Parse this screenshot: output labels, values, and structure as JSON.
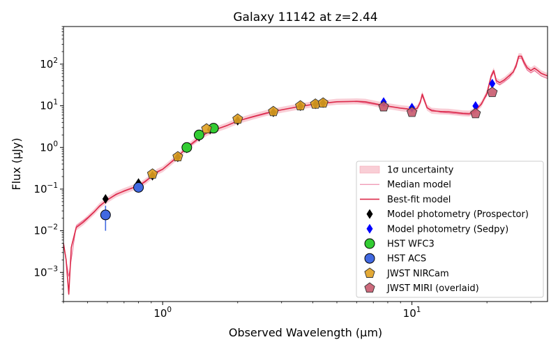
{
  "chart_data": {
    "type": "scatter",
    "title": "Galaxy 11142 at z=2.44",
    "xlabel": "Observed Wavelength (μm)",
    "ylabel": "Flux (μJy)",
    "xscale": "log",
    "yscale": "log",
    "xlim": [
      0.4,
      35
    ],
    "ylim": [
      0.0002,
      800
    ],
    "x_ticks": [
      {
        "value": 1,
        "base": "10",
        "exp": "0"
      },
      {
        "value": 10,
        "base": "10",
        "exp": "1"
      }
    ],
    "y_ticks": [
      {
        "value": 0.001,
        "base": "10",
        "exp": "−3"
      },
      {
        "value": 0.01,
        "base": "10",
        "exp": "−2"
      },
      {
        "value": 0.1,
        "base": "10",
        "exp": "−1"
      },
      {
        "value": 1,
        "base": "10",
        "exp": "0"
      },
      {
        "value": 10,
        "base": "10",
        "exp": "1"
      },
      {
        "value": 100,
        "base": "10",
        "exp": "2"
      }
    ],
    "legend_position": "bottom-right",
    "colors": {
      "uncertainty": "#f4a6b5",
      "median": "#e8608a",
      "bestfit": "#dc2a4a",
      "prospector": "#000000",
      "sedpy": "#0000ff",
      "wfc3": "#33cc33",
      "acs": "#4169e1",
      "nircam": "#e0a020",
      "miri": "#c85a6e"
    },
    "model_curve": [
      [
        0.4,
        0.005
      ],
      [
        0.41,
        0.002
      ],
      [
        0.42,
        0.0003
      ],
      [
        0.43,
        0.004
      ],
      [
        0.45,
        0.012
      ],
      [
        0.48,
        0.016
      ],
      [
        0.5,
        0.02
      ],
      [
        0.53,
        0.028
      ],
      [
        0.56,
        0.04
      ],
      [
        0.6,
        0.055
      ],
      [
        0.65,
        0.075
      ],
      [
        0.7,
        0.09
      ],
      [
        0.75,
        0.105
      ],
      [
        0.8,
        0.12
      ],
      [
        0.85,
        0.15
      ],
      [
        0.9,
        0.2
      ],
      [
        0.95,
        0.26
      ],
      [
        1.0,
        0.3
      ],
      [
        1.05,
        0.38
      ],
      [
        1.1,
        0.48
      ],
      [
        1.15,
        0.6
      ],
      [
        1.2,
        0.78
      ],
      [
        1.3,
        1.2
      ],
      [
        1.4,
        1.7
      ],
      [
        1.5,
        2.2
      ],
      [
        1.6,
        2.6
      ],
      [
        1.8,
        3.3
      ],
      [
        2.0,
        4.3
      ],
      [
        2.3,
        5.5
      ],
      [
        2.6,
        6.7
      ],
      [
        3.0,
        8.0
      ],
      [
        3.5,
        9.5
      ],
      [
        4.0,
        10.8
      ],
      [
        5.0,
        12.5
      ],
      [
        6.0,
        12.8
      ],
      [
        6.5,
        12.5
      ],
      [
        7.0,
        11.5
      ],
      [
        7.5,
        10.5
      ],
      [
        8.0,
        9.8
      ],
      [
        8.5,
        9.3
      ],
      [
        9.0,
        8.8
      ],
      [
        9.5,
        8.5
      ],
      [
        10.0,
        8.2
      ],
      [
        10.5,
        8.7
      ],
      [
        10.8,
        12.0
      ],
      [
        11.0,
        19.0
      ],
      [
        11.2,
        14.0
      ],
      [
        11.5,
        9.0
      ],
      [
        12.0,
        7.6
      ],
      [
        13.0,
        7.3
      ],
      [
        14.0,
        7.2
      ],
      [
        15.0,
        6.9
      ],
      [
        16.0,
        6.6
      ],
      [
        17.0,
        6.5
      ],
      [
        18.0,
        7.8
      ],
      [
        19.0,
        11.0
      ],
      [
        20.0,
        20.0
      ],
      [
        20.8,
        52.0
      ],
      [
        21.3,
        70.0
      ],
      [
        21.8,
        40.0
      ],
      [
        22.5,
        36.0
      ],
      [
        23.5,
        42.0
      ],
      [
        24.5,
        52.0
      ],
      [
        25.5,
        65.0
      ],
      [
        26.2,
        95.0
      ],
      [
        26.8,
        155.0
      ],
      [
        27.5,
        155.0
      ],
      [
        28.2,
        110.0
      ],
      [
        29.0,
        82.0
      ],
      [
        30.0,
        70.0
      ],
      [
        31.0,
        80.0
      ],
      [
        32.0,
        70.0
      ],
      [
        33.0,
        60.0
      ],
      [
        35.0,
        52.0
      ]
    ],
    "median_curve": [
      [
        0.4,
        0.005
      ],
      [
        0.42,
        0.0008
      ],
      [
        0.45,
        0.013
      ],
      [
        0.5,
        0.021
      ],
      [
        0.6,
        0.056
      ],
      [
        0.7,
        0.092
      ],
      [
        0.8,
        0.122
      ],
      [
        0.9,
        0.2
      ],
      [
        1.0,
        0.3
      ],
      [
        1.2,
        0.78
      ],
      [
        1.5,
        2.2
      ],
      [
        2.0,
        4.3
      ],
      [
        3.0,
        8.0
      ],
      [
        4.0,
        10.8
      ],
      [
        5.0,
        12.5
      ],
      [
        6.0,
        12.6
      ],
      [
        8.0,
        9.6
      ],
      [
        10.0,
        8.0
      ],
      [
        10.5,
        8.5
      ],
      [
        11.0,
        17.0
      ],
      [
        11.5,
        8.8
      ],
      [
        13.0,
        7.0
      ],
      [
        15.0,
        6.5
      ],
      [
        17.0,
        6.1
      ],
      [
        18.0,
        7.2
      ],
      [
        20.0,
        18.0
      ],
      [
        20.8,
        48.0
      ],
      [
        21.3,
        64.0
      ],
      [
        21.8,
        36.0
      ],
      [
        22.5,
        32.0
      ],
      [
        24.5,
        46.0
      ],
      [
        26.2,
        85.0
      ],
      [
        26.8,
        140.0
      ],
      [
        27.5,
        140.0
      ],
      [
        28.2,
        98.0
      ],
      [
        29.0,
        72.0
      ],
      [
        30.0,
        62.0
      ],
      [
        31.0,
        70.0
      ],
      [
        33.0,
        52.0
      ],
      [
        35.0,
        45.0
      ]
    ],
    "prospector_points": [
      [
        0.59,
        0.058
      ],
      [
        0.8,
        0.14
      ],
      [
        0.91,
        0.21
      ],
      [
        1.15,
        0.58
      ],
      [
        1.25,
        0.95
      ],
      [
        1.4,
        1.8
      ],
      [
        1.55,
        2.7
      ],
      [
        2.0,
        4.4
      ],
      [
        2.78,
        7.0
      ],
      [
        3.57,
        9.8
      ],
      [
        4.1,
        10.9
      ],
      [
        4.4,
        11.6
      ]
    ],
    "sedpy_points": [
      [
        7.7,
        12.3
      ],
      [
        10.0,
        9.0
      ],
      [
        18.0,
        9.9
      ],
      [
        21.0,
        34.0
      ]
    ],
    "wfc3_points": [
      [
        1.25,
        1.0
      ],
      [
        1.4,
        2.0
      ],
      [
        1.6,
        2.9
      ]
    ],
    "acs_points": [
      {
        "x": 0.59,
        "y": 0.024,
        "err": [
          0.01,
          0.04
        ]
      },
      {
        "x": 0.8,
        "y": 0.11,
        "err": null
      }
    ],
    "nircam_points": [
      [
        0.91,
        0.23
      ],
      [
        1.15,
        0.6
      ],
      [
        1.5,
        2.8
      ],
      [
        2.0,
        4.8
      ],
      [
        2.78,
        7.3
      ],
      [
        3.57,
        10.0
      ],
      [
        4.1,
        11.0
      ],
      [
        4.4,
        11.7
      ]
    ],
    "miri_points": [
      [
        7.7,
        9.5
      ],
      [
        10.0,
        7.0
      ],
      [
        18.0,
        6.5
      ],
      [
        21.0,
        21.0
      ]
    ],
    "legend": [
      {
        "key": "uncertainty",
        "label": "1σ uncertainty",
        "kind": "patch"
      },
      {
        "key": "median",
        "label": "Median model",
        "kind": "thinline"
      },
      {
        "key": "bestfit",
        "label": "Best-fit model",
        "kind": "line"
      },
      {
        "key": "prospector",
        "label": "Model photometry (Prospector)",
        "kind": "diamond"
      },
      {
        "key": "sedpy",
        "label": "Model photometry (Sedpy)",
        "kind": "diamond"
      },
      {
        "key": "wfc3",
        "label": "HST WFC3",
        "kind": "circle"
      },
      {
        "key": "acs",
        "label": "HST ACS",
        "kind": "circle"
      },
      {
        "key": "nircam",
        "label": "JWST NIRCam",
        "kind": "pentagon"
      },
      {
        "key": "miri",
        "label": "JWST MIRI (overlaid)",
        "kind": "pentagon"
      }
    ]
  }
}
